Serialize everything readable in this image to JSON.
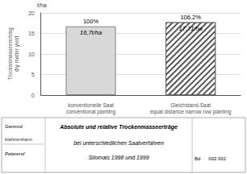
{
  "chart_data": {
    "type": "bar",
    "title": "Absolute und relative Trockenmasseerträge",
    "subtitle": [
      "bei unterschiedlichen Saatverfahren",
      "Silomais 1998 und 1999"
    ],
    "categories": [
      "konventionelle Saat\nconventional planting",
      "Gleichstand-Saat\nequal distance narrow row planting"
    ],
    "values": [
      16.7,
      17.71
    ],
    "value_labels": [
      "16,7t/ha",
      "17,71/ha"
    ],
    "data_labels": true,
    "annotations": [
      "100%",
      "106,2%"
    ],
    "colors": [
      "#d8d8d8",
      "#ffffff"
    ],
    "ylabel": "Trockenmasseerertrag\ndry matter yield",
    "yunits": "t/ha",
    "ylim": [
      0,
      20
    ],
    "yticks": [
      0,
      5,
      10,
      15,
      20
    ],
    "grid": true,
    "footer_left": [
      "Genmrd",
      "Hahnenkann",
      "Peterersf"
    ],
    "footer_right": "Bd      002 002"
  }
}
